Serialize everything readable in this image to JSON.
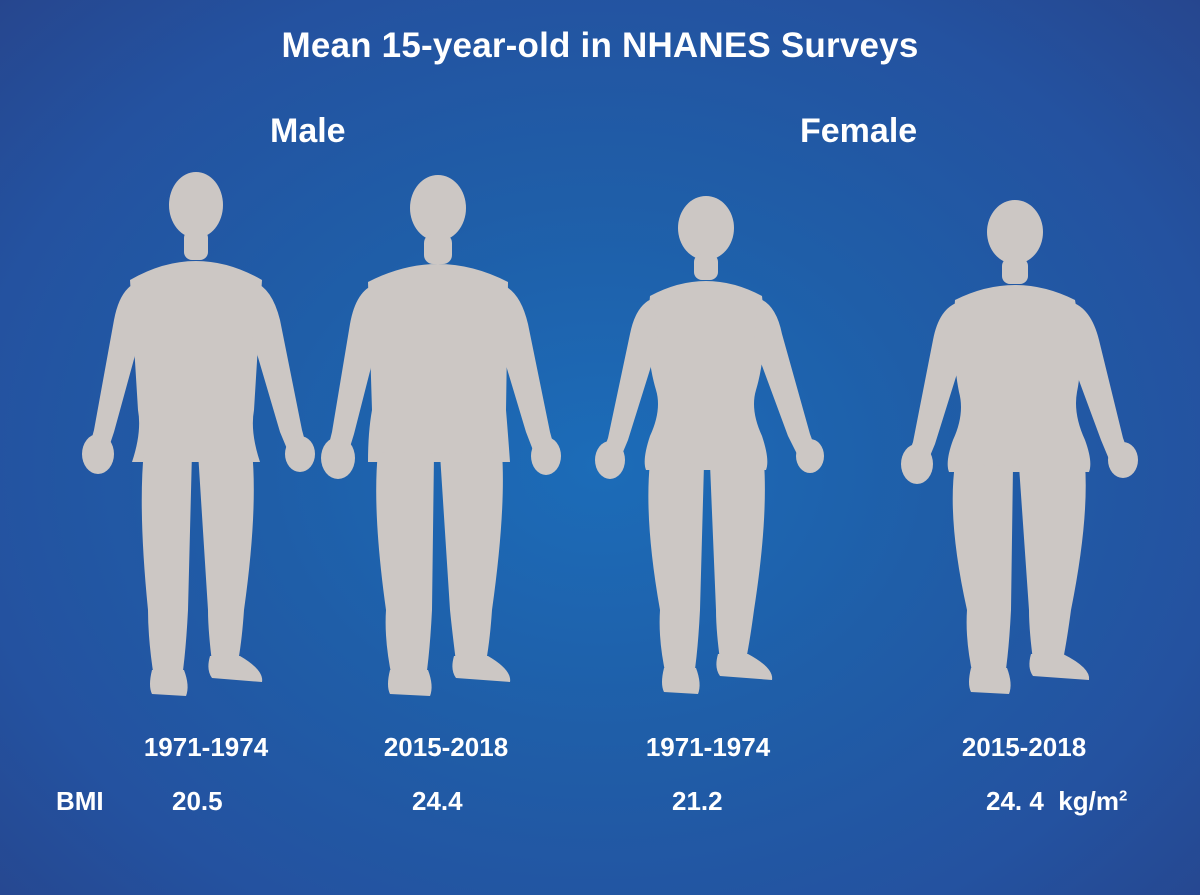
{
  "title": "Mean 15-year-old in NHANES Surveys",
  "groups": {
    "male": "Male",
    "female": "Female"
  },
  "periods": [
    "1971-1974",
    "2015-2018",
    "1971-1974",
    "2015-2018"
  ],
  "bmi": {
    "label": "BMI",
    "values": [
      "20.5",
      "24.4",
      "21.2",
      "24. 4"
    ],
    "unit": "kg/m",
    "unit_superscript": "2"
  },
  "figures": [
    {
      "sex": "male",
      "period": "1971-1974",
      "bmi": 20.5
    },
    {
      "sex": "male",
      "period": "2015-2018",
      "bmi": 24.4
    },
    {
      "sex": "female",
      "period": "1971-1974",
      "bmi": 21.2
    },
    {
      "sex": "female",
      "period": "2015-2018",
      "bmi": 24.4
    }
  ],
  "colors": {
    "background": "#1f5ea8",
    "text": "#ffffff",
    "figure": "#ccc7c4"
  }
}
